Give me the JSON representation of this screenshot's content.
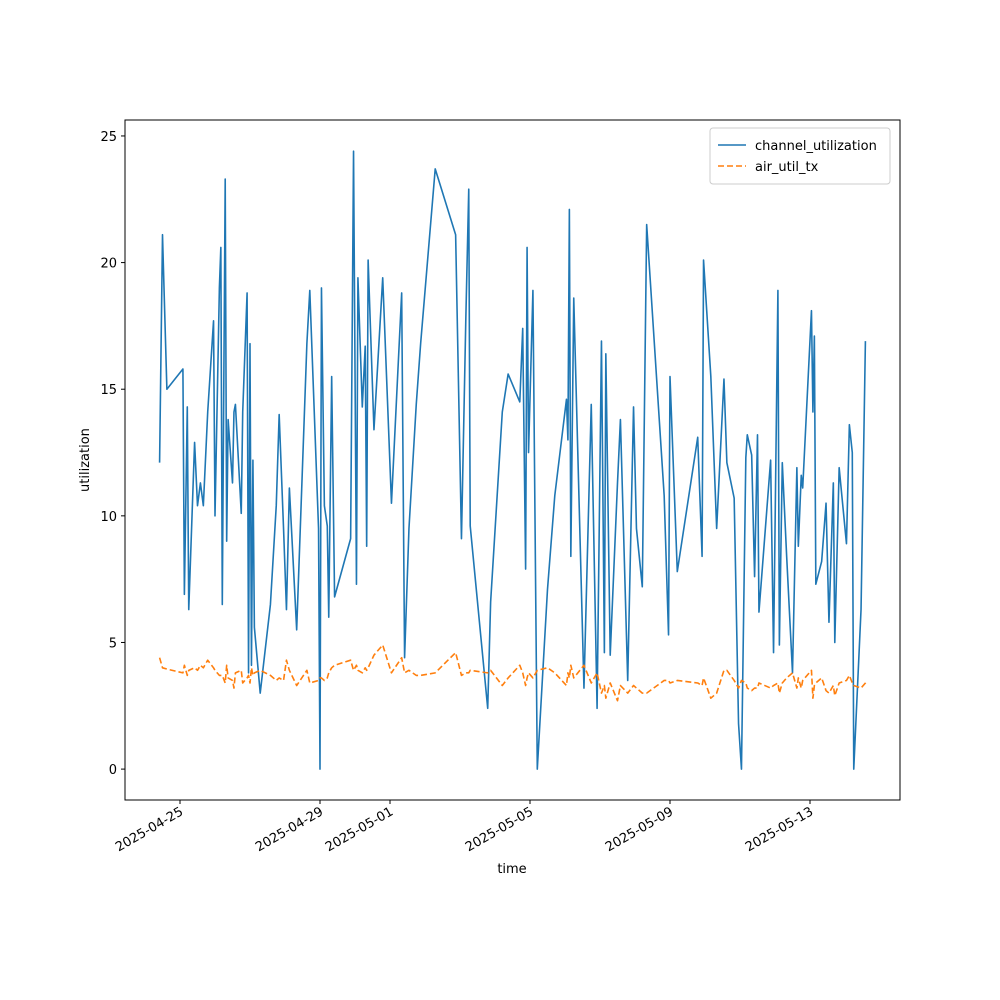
{
  "chart_data": {
    "type": "line",
    "x_label": "time",
    "y_label": "utilization",
    "x": [
      "2025-04-24T10:00",
      "2025-04-24T12:00",
      "2025-04-24T15:00",
      "2025-04-25T02:00",
      "2025-04-25T03:00",
      "2025-04-25T05:00",
      "2025-04-25T06:00",
      "2025-04-25T10:00",
      "2025-04-25T12:00",
      "2025-04-25T14:00",
      "2025-04-25T16:00",
      "2025-04-25T19:00",
      "2025-04-25T23:00",
      "2025-04-26T00:00",
      "2025-04-26T03:00",
      "2025-04-26T04:00",
      "2025-04-26T05:00",
      "2025-04-26T07:00",
      "2025-04-26T08:00",
      "2025-04-26T09:00",
      "2025-04-26T12:00",
      "2025-04-26T13:00",
      "2025-04-26T14:00",
      "2025-04-26T18:00",
      "2025-04-26T19:00",
      "2025-04-26T22:00",
      "2025-04-26T23:00",
      "2025-04-27T00:00",
      "2025-04-27T01:00",
      "2025-04-27T02:00",
      "2025-04-27T03:00",
      "2025-04-27T07:00",
      "2025-04-27T14:00",
      "2025-04-27T18:00",
      "2025-04-27T20:00",
      "2025-04-27T23:00",
      "2025-04-28T01:00",
      "2025-04-28T03:00",
      "2025-04-28T08:00",
      "2025-04-28T15:00",
      "2025-04-28T17:00",
      "2025-04-28T23:00",
      "2025-04-29T00:00",
      "2025-04-29T01:00",
      "2025-04-29T03:00",
      "2025-04-29T05:00",
      "2025-04-29T06:00",
      "2025-04-29T08:00",
      "2025-04-29T10:00",
      "2025-04-29T21:00",
      "2025-04-29T23:00",
      "2025-04-30T01:00",
      "2025-04-30T02:00",
      "2025-04-30T05:00",
      "2025-04-30T07:00",
      "2025-04-30T08:00",
      "2025-04-30T09:00",
      "2025-04-30T13:00",
      "2025-04-30T19:00",
      "2025-05-01T01:00",
      "2025-05-01T08:00",
      "2025-05-01T10:00",
      "2025-05-01T13:00",
      "2025-05-01T18:00",
      "2025-05-01T21:00",
      "2025-05-02T07:00",
      "2025-05-02T21:00",
      "2025-05-03T01:00",
      "2025-05-03T04:00",
      "2025-05-03T06:00",
      "2025-05-03T07:00",
      "2025-05-03T19:00",
      "2025-05-03T21:00",
      "2025-05-04T05:00",
      "2025-05-04T09:00",
      "2025-05-04T17:00",
      "2025-05-04T19:00",
      "2025-05-04T21:00",
      "2025-05-04T22:00",
      "2025-05-04T23:00",
      "2025-05-05T02:00",
      "2025-05-05T05:00",
      "2025-05-05T12:00",
      "2025-05-05T17:00",
      "2025-05-06T01:00",
      "2025-05-06T02:00",
      "2025-05-06T03:00",
      "2025-05-06T04:00",
      "2025-05-06T06:00",
      "2025-05-06T13:00",
      "2025-05-06T18:00",
      "2025-05-06T22:00",
      "2025-05-07T01:00",
      "2025-05-07T03:00",
      "2025-05-07T04:00",
      "2025-05-07T07:00",
      "2025-05-07T12:00",
      "2025-05-07T14:00",
      "2025-05-07T19:00",
      "2025-05-07T23:00",
      "2025-05-08T01:00",
      "2025-05-08T05:00",
      "2025-05-08T08:00",
      "2025-05-08T20:00",
      "2025-05-08T23:00",
      "2025-05-09T00:00",
      "2025-05-09T05:00",
      "2025-05-09T19:00",
      "2025-05-09T22:00",
      "2025-05-09T23:00",
      "2025-05-10T04:00",
      "2025-05-10T08:00",
      "2025-05-10T13:00",
      "2025-05-10T15:00",
      "2025-05-10T20:00",
      "2025-05-10T23:00",
      "2025-05-11T01:00",
      "2025-05-11T04:00",
      "2025-05-11T05:00",
      "2025-05-11T08:00",
      "2025-05-11T10:00",
      "2025-05-11T12:00",
      "2025-05-11T13:00",
      "2025-05-11T21:00",
      "2025-05-11T23:00",
      "2025-05-12T02:00",
      "2025-05-12T03:00",
      "2025-05-12T05:00",
      "2025-05-12T08:00",
      "2025-05-12T12:00",
      "2025-05-12T15:00",
      "2025-05-12T16:00",
      "2025-05-12T18:00",
      "2025-05-12T19:00",
      "2025-05-13T01:00",
      "2025-05-13T02:00",
      "2025-05-13T03:00",
      "2025-05-13T04:00",
      "2025-05-13T08:00",
      "2025-05-13T11:00",
      "2025-05-13T13:00",
      "2025-05-13T16:00",
      "2025-05-13T17:00",
      "2025-05-13T20:00",
      "2025-05-14T01:00",
      "2025-05-14T03:00",
      "2025-05-14T05:00",
      "2025-05-14T06:00",
      "2025-05-14T11:00",
      "2025-05-14T14:00",
      "2025-05-14T15:00"
    ],
    "series": [
      {
        "name": "channel_utilization",
        "color": "#1f77b4",
        "linestyle": "solid",
        "values": [
          12.1,
          21.1,
          15.0,
          15.8,
          6.9,
          14.3,
          6.3,
          12.9,
          10.4,
          11.3,
          10.4,
          14.1,
          17.7,
          10.0,
          19.0,
          20.6,
          6.5,
          23.3,
          9.0,
          13.8,
          11.3,
          14.1,
          14.4,
          10.1,
          14.1,
          18.8,
          3.8,
          16.8,
          4.1,
          12.2,
          5.6,
          3.0,
          6.5,
          10.4,
          14.0,
          9.5,
          6.3,
          11.1,
          5.5,
          16.8,
          18.9,
          9.5,
          0.0,
          19.0,
          10.4,
          9.6,
          6.0,
          15.5,
          6.8,
          9.1,
          24.4,
          7.3,
          19.4,
          14.3,
          16.7,
          8.8,
          20.1,
          13.4,
          19.4,
          10.5,
          18.8,
          4.4,
          9.5,
          14.4,
          16.8,
          23.7,
          21.1,
          9.1,
          17.8,
          22.9,
          9.6,
          2.4,
          6.6,
          14.1,
          15.6,
          14.5,
          17.4,
          7.9,
          20.6,
          12.5,
          18.9,
          0.0,
          7.1,
          10.8,
          14.6,
          13.0,
          22.1,
          8.4,
          18.6,
          3.2,
          14.4,
          2.4,
          16.9,
          4.6,
          16.4,
          4.5,
          11.3,
          13.8,
          3.5,
          14.3,
          9.5,
          7.2,
          21.5,
          10.8,
          5.3,
          15.5,
          7.8,
          13.1,
          8.4,
          20.1,
          15.5,
          9.5,
          15.4,
          12.1,
          10.7,
          1.8,
          0.0,
          12.3,
          13.2,
          12.4,
          7.6,
          13.2,
          6.2,
          12.2,
          4.6,
          18.9,
          4.9,
          12.1,
          8.4,
          3.8,
          11.9,
          8.8,
          11.6,
          11.1,
          18.1,
          14.1,
          17.1,
          7.3,
          8.2,
          10.5,
          5.8,
          11.3,
          5.0,
          11.9,
          8.9,
          13.6,
          12.5,
          0.0,
          6.3,
          16.9,
          null
        ]
      },
      {
        "name": "air_util_tx",
        "color": "#ff7f0e",
        "linestyle": "dashed",
        "values": [
          4.4,
          4.0,
          3.95,
          3.8,
          4.1,
          3.7,
          3.9,
          4.0,
          3.9,
          4.1,
          4.0,
          4.3,
          4.0,
          3.9,
          3.7,
          3.7,
          3.7,
          3.4,
          4.1,
          3.6,
          3.5,
          3.2,
          3.8,
          3.9,
          3.4,
          3.6,
          3.7,
          3.4,
          4.0,
          3.7,
          3.8,
          3.9,
          3.7,
          3.5,
          3.6,
          3.5,
          4.3,
          3.9,
          3.3,
          3.9,
          3.4,
          3.5,
          3.6,
          3.6,
          3.5,
          3.6,
          3.8,
          4.0,
          4.1,
          4.3,
          3.9,
          4.1,
          3.9,
          3.8,
          4.0,
          3.9,
          4.0,
          4.5,
          4.9,
          3.8,
          4.4,
          3.8,
          3.9,
          3.7,
          3.7,
          3.8,
          4.6,
          3.7,
          3.8,
          3.8,
          3.9,
          3.8,
          3.9,
          3.3,
          3.6,
          4.1,
          3.8,
          3.3,
          3.6,
          3.8,
          3.6,
          3.9,
          4.0,
          3.8,
          3.3,
          3.8,
          3.6,
          4.1,
          3.6,
          4.1,
          3.4,
          3.8,
          3.0,
          3.3,
          2.8,
          3.4,
          2.7,
          3.3,
          3.0,
          3.3,
          3.2,
          3.0,
          3.0,
          3.5,
          3.5,
          3.4,
          3.5,
          3.4,
          3.3,
          3.6,
          2.8,
          3.0,
          3.9,
          3.9,
          3.5,
          3.2,
          3.5,
          3.4,
          3.2,
          3.1,
          3.2,
          3.2,
          3.4,
          3.2,
          3.3,
          3.4,
          3.0,
          3.4,
          3.6,
          3.8,
          3.2,
          3.6,
          3.2,
          3.5,
          3.9,
          2.8,
          3.3,
          3.4,
          3.6,
          3.1,
          3.0,
          3.3,
          2.9,
          3.4,
          3.5,
          3.7,
          3.4,
          3.3,
          3.2,
          3.4,
          3.5
        ]
      }
    ],
    "xlim": [
      "2025-04-23T10:17",
      "2025-05-15T13:43"
    ],
    "xticks": [
      "2025-04-25",
      "2025-04-29",
      "2025-05-01",
      "2025-05-05",
      "2025-05-09",
      "2025-05-13"
    ],
    "ylim": [
      -1.22,
      25.63
    ],
    "yticks": [
      0,
      5,
      10,
      15,
      20,
      25
    ],
    "grid": false,
    "legend": "upper right"
  }
}
